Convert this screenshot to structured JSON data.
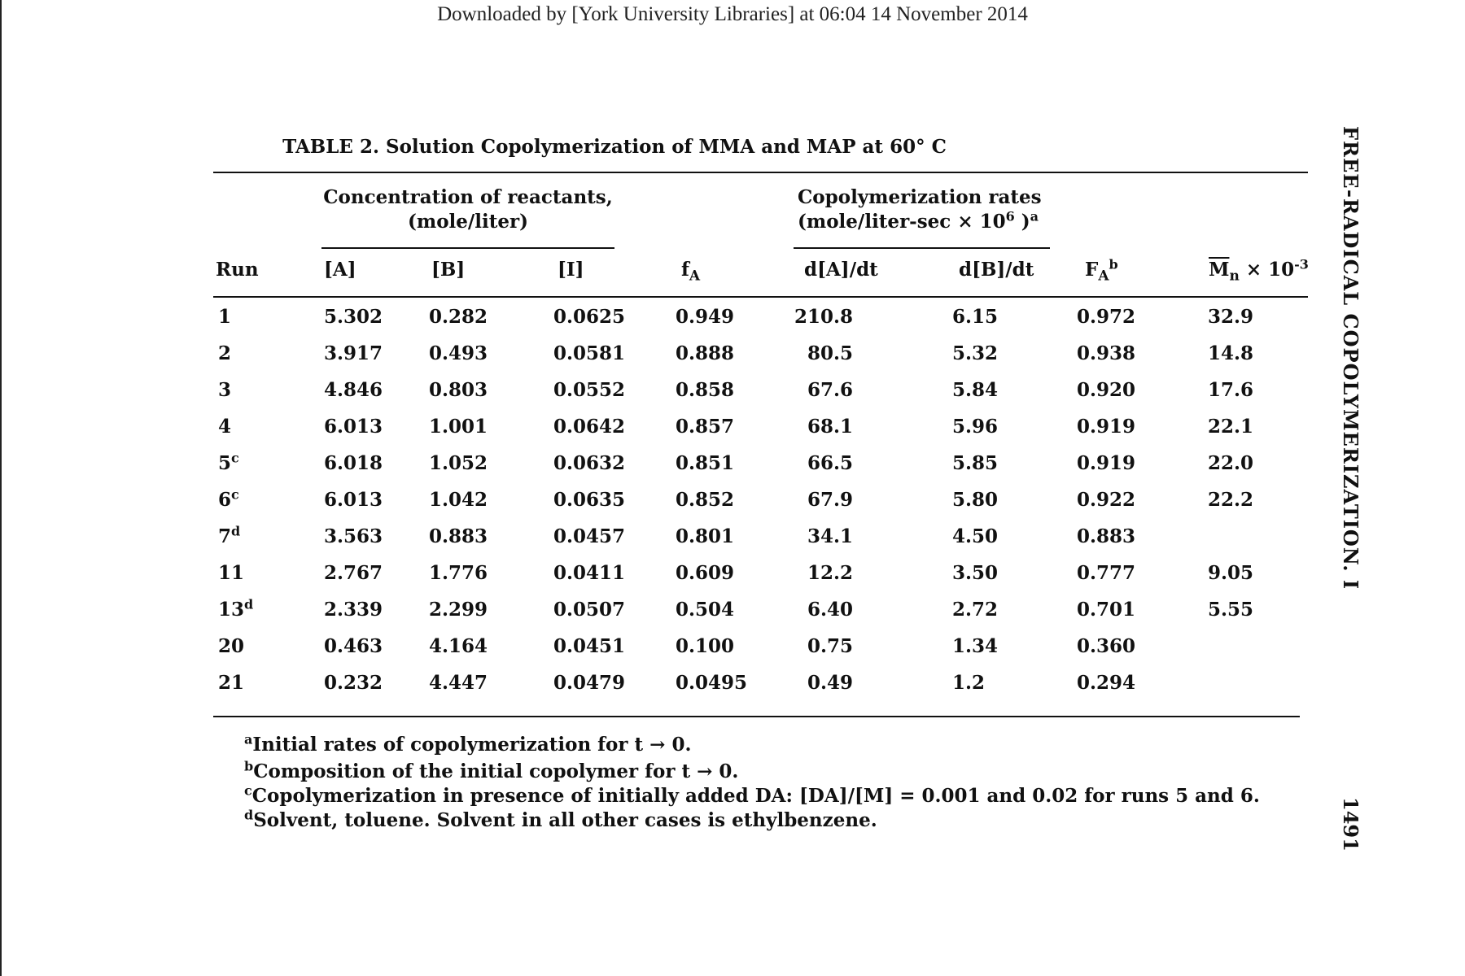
{
  "download_notice": "Downloaded by [York University Libraries] at 06:04 14 November 2014",
  "running_head": "FREE-RADICAL COPOLYMERIZATION. I",
  "page_number": "1491",
  "table": {
    "title": "TABLE 2.  Solution Copolymerization of MMA and MAP at 60° C",
    "group_concentration_line1": "Concentration of reactants,",
    "group_concentration_line2": "(mole/liter)",
    "group_rates_line1": "Copolymerization rates",
    "group_rates_line2": "(mole/liter-sec × 10",
    "group_rates_exp": "6",
    "group_rates_close": " )",
    "group_rates_note": "a",
    "headers": {
      "run": "Run",
      "A": "[A]",
      "B": "[B]",
      "I": "[I]",
      "fA_base": "f",
      "fA_sub": "A",
      "dA": "d[A]/dt",
      "dB": "d[B]/dt",
      "FA_base": "F",
      "FA_sub": "A",
      "FA_note": "b",
      "Mn_base": "M",
      "Mn_sub": "n",
      "Mn_rest": " × 10",
      "Mn_exp": "-3"
    },
    "rows": [
      {
        "run": "1",
        "run_note": "",
        "A": "5.302",
        "B": "0.282",
        "I": "0.0625",
        "fA": "0.949",
        "dA": "210.8",
        "dB": "6.15",
        "FA": "0.972",
        "Mn": "32.9"
      },
      {
        "run": "2",
        "run_note": "",
        "A": "3.917",
        "B": "0.493",
        "I": "0.0581",
        "fA": "0.888",
        "dA": "80.5",
        "dB": "5.32",
        "FA": "0.938",
        "Mn": "14.8"
      },
      {
        "run": "3",
        "run_note": "",
        "A": "4.846",
        "B": "0.803",
        "I": "0.0552",
        "fA": "0.858",
        "dA": "67.6",
        "dB": "5.84",
        "FA": "0.920",
        "Mn": "17.6"
      },
      {
        "run": "4",
        "run_note": "",
        "A": "6.013",
        "B": "1.001",
        "I": "0.0642",
        "fA": "0.857",
        "dA": "68.1",
        "dB": "5.96",
        "FA": "0.919",
        "Mn": "22.1"
      },
      {
        "run": "5",
        "run_note": "c",
        "A": "6.018",
        "B": "1.052",
        "I": "0.0632",
        "fA": "0.851",
        "dA": "66.5",
        "dB": "5.85",
        "FA": "0.919",
        "Mn": "22.0"
      },
      {
        "run": "6",
        "run_note": "c",
        "A": "6.013",
        "B": "1.042",
        "I": "0.0635",
        "fA": "0.852",
        "dA": "67.9",
        "dB": "5.80",
        "FA": "0.922",
        "Mn": "22.2"
      },
      {
        "run": "7",
        "run_note": "d",
        "A": "3.563",
        "B": "0.883",
        "I": "0.0457",
        "fA": "0.801",
        "dA": "34.1",
        "dB": "4.50",
        "FA": "0.883",
        "Mn": ""
      },
      {
        "run": "11",
        "run_note": "",
        "A": "2.767",
        "B": "1.776",
        "I": "0.0411",
        "fA": "0.609",
        "dA": "12.2",
        "dB": "3.50",
        "FA": "0.777",
        "Mn": "9.05"
      },
      {
        "run": "13",
        "run_note": "d",
        "A": "2.339",
        "B": "2.299",
        "I": "0.0507",
        "fA": "0.504",
        "dA": "6.40",
        "dB": "2.72",
        "FA": "0.701",
        "Mn": "5.55"
      },
      {
        "run": "20",
        "run_note": "",
        "A": "0.463",
        "B": "4.164",
        "I": "0.0451",
        "fA": "0.100",
        "dA": "0.75",
        "dB": "1.34",
        "FA": "0.360",
        "Mn": ""
      },
      {
        "run": "21",
        "run_note": "",
        "A": "0.232",
        "B": "4.447",
        "I": "0.0479",
        "fA": "0.0495",
        "dA": "0.49",
        "dB": "1.2",
        "FA": "0.294",
        "Mn": ""
      }
    ]
  },
  "footnotes": [
    {
      "mark": "a",
      "text": "Initial rates of copolymerization for t → 0."
    },
    {
      "mark": "b",
      "text": "Composition of the initial copolymer for t → 0."
    },
    {
      "mark": "c",
      "text": "Copolymerization in presence of initially added DA:  [DA]/[M] = 0.001 and 0.02 for runs 5 and 6."
    },
    {
      "mark": "d",
      "text": "Solvent, toluene.  Solvent in all other cases is ethylbenzene."
    }
  ]
}
